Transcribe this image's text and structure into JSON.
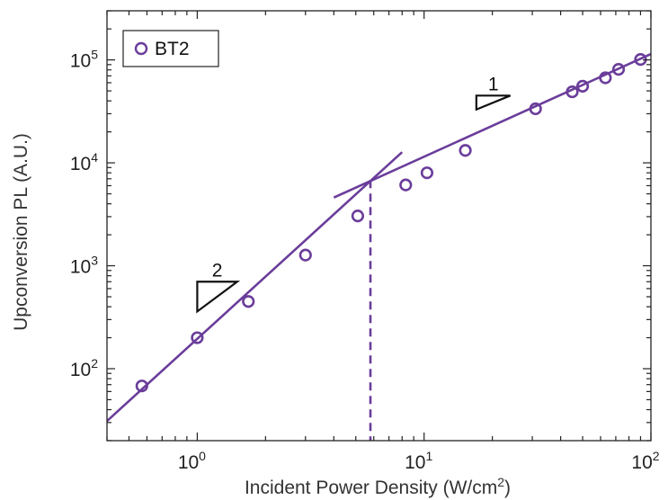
{
  "chart_data": {
    "type": "scatter",
    "xscale": "log",
    "yscale": "log",
    "xlim": [
      0.4,
      100
    ],
    "ylim": [
      20,
      300000
    ],
    "xlabel": "Incident Power Density (W/cm",
    "xlabel_sup": "2",
    "xlabel_end": ")",
    "ylabel": "Upconversion PL (A.U.)",
    "x_ticks": [
      {
        "value": 1,
        "base": "10",
        "exp": "0"
      },
      {
        "value": 10,
        "base": "10",
        "exp": "1"
      },
      {
        "value": 100,
        "base": "10",
        "exp": "2"
      }
    ],
    "y_ticks": [
      {
        "value": 100,
        "base": "10",
        "exp": "2"
      },
      {
        "value": 1000,
        "base": "10",
        "exp": "3"
      },
      {
        "value": 10000,
        "base": "10",
        "exp": "4"
      },
      {
        "value": 100000,
        "base": "10",
        "exp": "5"
      }
    ],
    "legend_position": "top-left",
    "color": "#6a3d9a",
    "series": [
      {
        "name": "BT2",
        "marker": "open-circle",
        "points": [
          {
            "x": 0.57,
            "y": 68
          },
          {
            "x": 1.0,
            "y": 200
          },
          {
            "x": 1.68,
            "y": 450
          },
          {
            "x": 3.0,
            "y": 1270
          },
          {
            "x": 5.1,
            "y": 3050
          },
          {
            "x": 8.3,
            "y": 6100
          },
          {
            "x": 10.3,
            "y": 8000
          },
          {
            "x": 15.2,
            "y": 13200
          },
          {
            "x": 31,
            "y": 33500
          },
          {
            "x": 45,
            "y": 49000
          },
          {
            "x": 50,
            "y": 55500
          },
          {
            "x": 63,
            "y": 67000
          },
          {
            "x": 72,
            "y": 81000
          },
          {
            "x": 90,
            "y": 101000
          }
        ]
      }
    ],
    "fit_lines": [
      {
        "slope": 2,
        "from": [
          0.4,
          31
        ],
        "to": [
          8,
          12700
        ]
      },
      {
        "slope": 1,
        "from": [
          4,
          4600
        ],
        "to": [
          100,
          114000
        ]
      }
    ],
    "threshold": {
      "x": 5.8,
      "y": 6800
    },
    "slope_triangles": [
      {
        "label": "2",
        "x1": 1.0,
        "x2": 1.5,
        "y_low": 360,
        "y_high": 700
      },
      {
        "label": "1",
        "x1": 17,
        "x2": 24,
        "y_low": 33000,
        "y_high": 45000
      }
    ]
  }
}
